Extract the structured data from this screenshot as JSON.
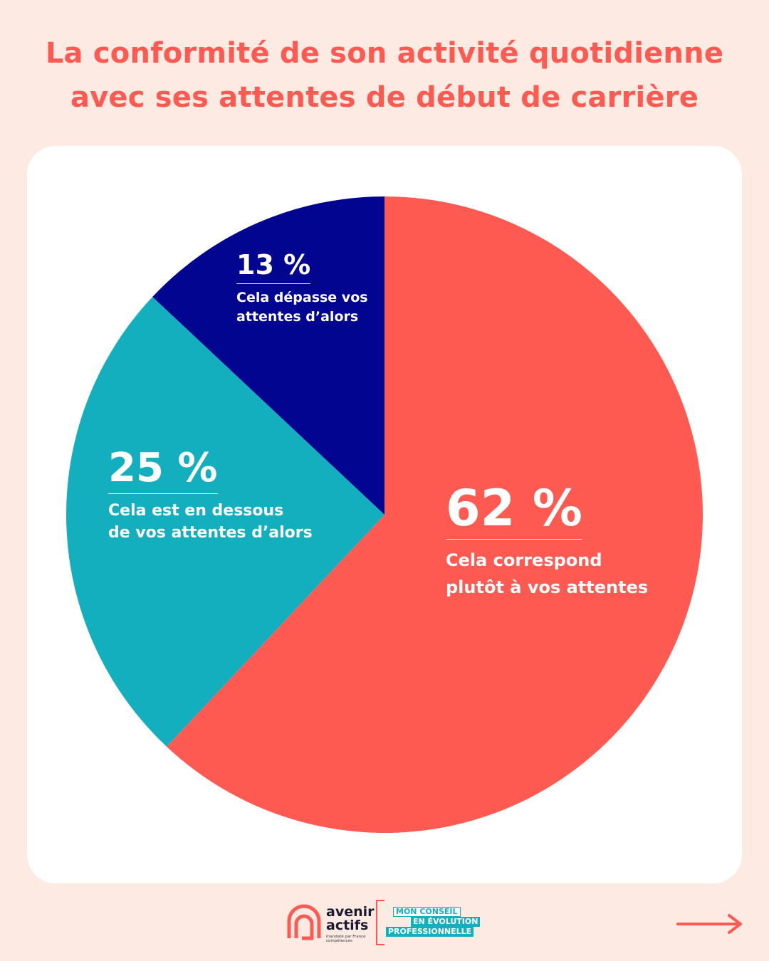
{
  "title": {
    "line1": "La conformité de son activité quotidienne",
    "line2": "avec ses attentes de début de carrière"
  },
  "colors": {
    "background": "#FDEAE2",
    "card": "#FFFFFF",
    "accent": "#FF5A52",
    "slice_62": "#FF5A52",
    "slice_25": "#14AFBF",
    "slice_13": "#02058F"
  },
  "chart_data": {
    "type": "pie",
    "title": "La conformité de son activité quotidienne avec ses attentes de début de carrière",
    "slices": [
      {
        "value": 62,
        "label": "62 %",
        "description": "Cela correspond plutôt à vos attentes",
        "desc_line1": "Cela correspond",
        "desc_line2": "plutôt à vos attentes",
        "color": "#FF5A52"
      },
      {
        "value": 25,
        "label": "25 %",
        "description": "Cela est en dessous de vos attentes d’alors",
        "desc_line1": "Cela est en dessous",
        "desc_line2": "de vos attentes d’alors",
        "color": "#14AFBF"
      },
      {
        "value": 13,
        "label": "13 %",
        "description": "Cela dépasse vos attentes d’alors",
        "desc_line1": "Cela dépasse vos",
        "desc_line2": "attentes d’alors",
        "color": "#02058F"
      }
    ],
    "start_angle_deg": 0,
    "direction": "clockwise"
  },
  "footer": {
    "logo_line1": "avenir",
    "logo_line2": "actifs",
    "logo_tagline": "mandaté par France compétences",
    "badge_line1": "MON CONSEIL",
    "badge_line2": "EN ÉVOLUTION",
    "badge_line3": "PROFESSIONNELLE",
    "next_icon": "arrow-right-icon"
  }
}
